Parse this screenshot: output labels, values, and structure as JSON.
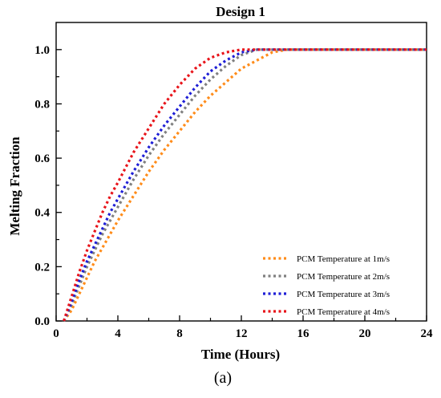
{
  "chart_data": {
    "type": "line",
    "title": "Design 1",
    "xlabel": "Time (Hours)",
    "ylabel": "Melting Fraction",
    "caption": "(a)",
    "xlim": [
      0,
      24
    ],
    "ylim": [
      0,
      1.1
    ],
    "xticks": [
      0,
      4,
      8,
      12,
      16,
      20,
      24
    ],
    "yticks": [
      0.0,
      0.2,
      0.4,
      0.6,
      0.8,
      1.0
    ],
    "ytick_labels": [
      "0.0",
      "0.2",
      "0.4",
      "0.6",
      "0.8",
      "1.0"
    ],
    "grid": false,
    "legend_position": "bottom-right",
    "x": [
      0.5,
      1,
      1.5,
      2,
      2.5,
      3,
      3.5,
      4,
      5,
      6,
      7,
      8,
      9,
      10,
      11,
      12,
      13,
      14,
      15,
      16,
      18,
      20,
      22,
      24
    ],
    "series": [
      {
        "name": "PCM Temperature at 1m/s",
        "color": "#ff8c1a",
        "values": [
          0,
          0.04,
          0.1,
          0.16,
          0.22,
          0.27,
          0.32,
          0.37,
          0.46,
          0.55,
          0.63,
          0.7,
          0.77,
          0.83,
          0.88,
          0.93,
          0.96,
          0.99,
          1.0,
          1.0,
          1.0,
          1.0,
          1.0,
          1.0
        ]
      },
      {
        "name": "PCM Temperature at 2m/s",
        "color": "#808080",
        "values": [
          0,
          0.06,
          0.13,
          0.2,
          0.26,
          0.32,
          0.37,
          0.42,
          0.52,
          0.61,
          0.69,
          0.76,
          0.83,
          0.89,
          0.94,
          0.98,
          1.0,
          1.0,
          1.0,
          1.0,
          1.0,
          1.0,
          1.0,
          1.0
        ]
      },
      {
        "name": "PCM Temperature at 3m/s",
        "color": "#1f1fd6",
        "values": [
          0,
          0.07,
          0.15,
          0.22,
          0.28,
          0.34,
          0.4,
          0.45,
          0.55,
          0.64,
          0.72,
          0.79,
          0.86,
          0.92,
          0.96,
          0.99,
          1.0,
          1.0,
          1.0,
          1.0,
          1.0,
          1.0,
          1.0,
          1.0
        ]
      },
      {
        "name": "PCM Temperature at 4m/s",
        "color": "#e8141a",
        "values": [
          0,
          0.09,
          0.18,
          0.26,
          0.33,
          0.4,
          0.46,
          0.51,
          0.62,
          0.71,
          0.8,
          0.87,
          0.93,
          0.97,
          0.99,
          1.0,
          1.0,
          1.0,
          1.0,
          1.0,
          1.0,
          1.0,
          1.0,
          1.0
        ]
      }
    ]
  }
}
